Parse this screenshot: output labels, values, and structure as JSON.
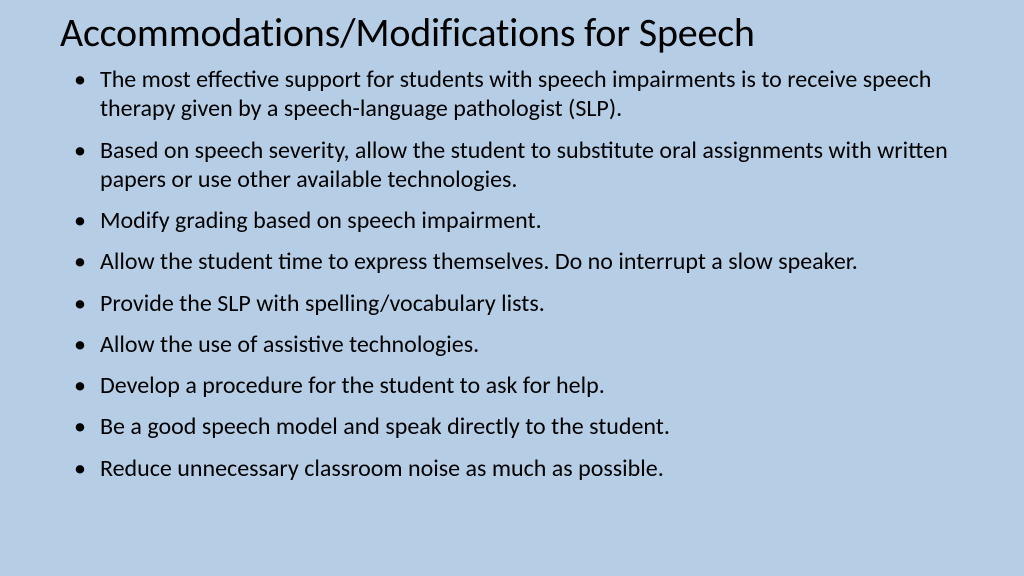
{
  "background_color": "#b6cde6",
  "text_color": "#000000",
  "title_fontsize": 40,
  "body_fontsize": 24,
  "slide": {
    "title": "Accommodations/Modifications for Speech",
    "bullets": [
      "The most effective support for students with speech impairments is to receive speech therapy given by a speech-language pathologist (SLP).",
      "Based on speech severity, allow the student to substitute oral assignments with written papers or use other available technologies.",
      "Modify grading based on speech impairment.",
      "Allow the student time to express themselves. Do no interrupt a slow speaker.",
      "Provide the SLP with spelling/vocabulary lists.",
      "Allow the use of assistive technologies.",
      "Develop a procedure for the student to ask for help.",
      "Be a good speech model and speak directly to the student.",
      "Reduce unnecessary classroom noise as much as possible."
    ]
  }
}
